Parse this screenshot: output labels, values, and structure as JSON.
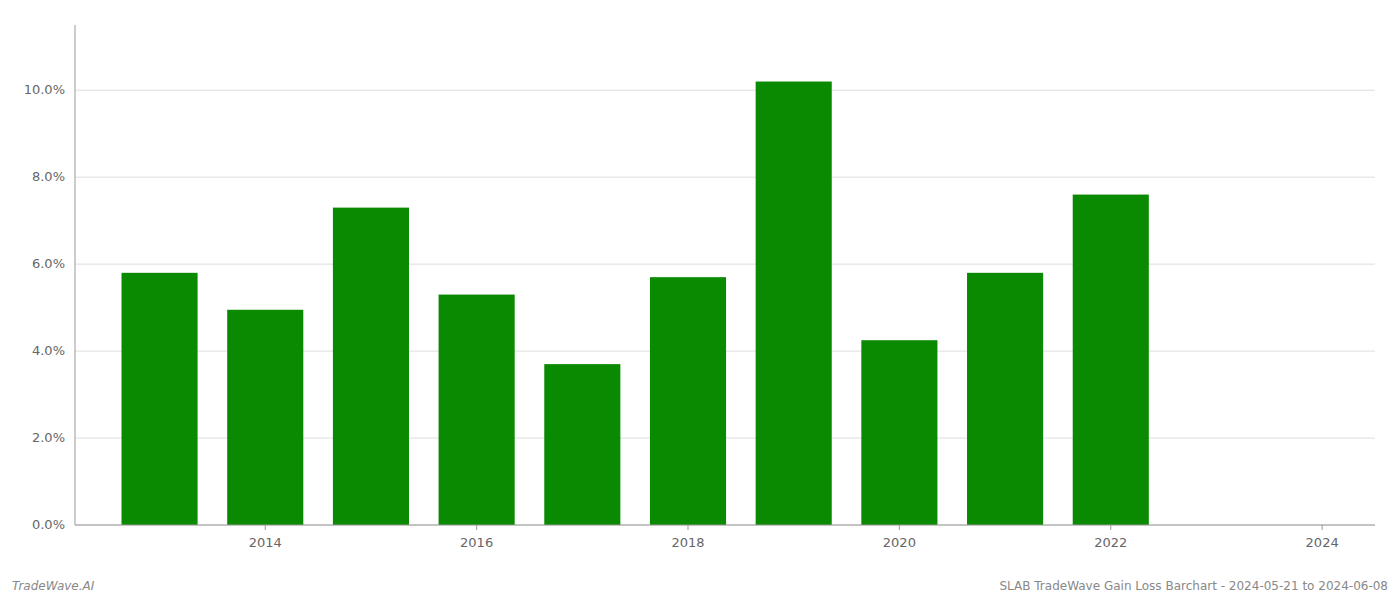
{
  "chart_data": {
    "type": "bar",
    "x": [
      2013,
      2014,
      2015,
      2016,
      2017,
      2018,
      2019,
      2020,
      2021,
      2022,
      2023
    ],
    "values": [
      0.058,
      0.0495,
      0.073,
      0.053,
      0.037,
      0.057,
      0.102,
      0.0425,
      0.058,
      0.076,
      0.0
    ],
    "color": "#0a8a00",
    "xlim": [
      2012.2,
      2024.5
    ],
    "xticks": [
      2014,
      2016,
      2018,
      2020,
      2022,
      2024
    ],
    "ylim": [
      0,
      0.115
    ],
    "yticks": [
      {
        "value": 0.0,
        "label": "0.0%"
      },
      {
        "value": 0.02,
        "label": "2.0%"
      },
      {
        "value": 0.04,
        "label": "4.0%"
      },
      {
        "value": 0.06,
        "label": "6.0%"
      },
      {
        "value": 0.08,
        "label": "8.0%"
      },
      {
        "value": 0.1,
        "label": "10.0%"
      }
    ],
    "grid": true,
    "annotations": [
      "TradeWave.AI",
      "SLAB TradeWave Gain Loss Barchart - 2024-05-21 to 2024-06-08"
    ]
  }
}
